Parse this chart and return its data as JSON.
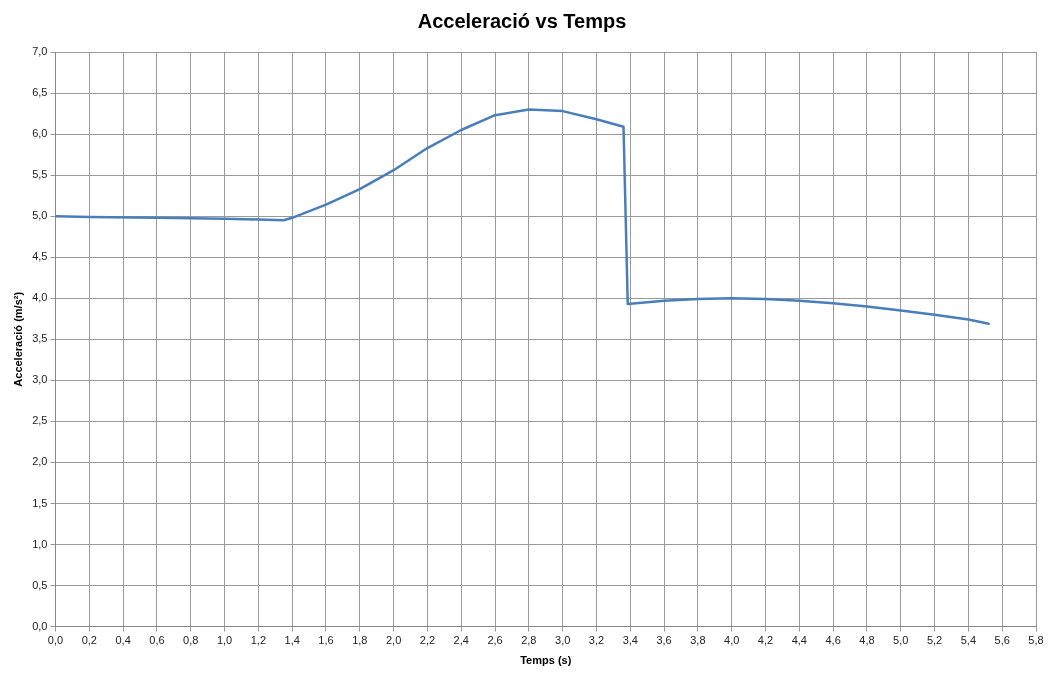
{
  "chart_data": {
    "type": "line",
    "title": "Acceleració vs Temps",
    "xlabel": "Temps (s)",
    "ylabel": "Acceleració (m/s²)",
    "x": [
      0,
      0.2,
      0.6,
      1.0,
      1.2,
      1.35,
      1.4,
      1.6,
      1.8,
      2.0,
      2.2,
      2.4,
      2.6,
      2.8,
      3.0,
      3.2,
      3.36,
      3.385,
      3.6,
      3.8,
      4.0,
      4.2,
      4.4,
      4.6,
      4.8,
      5.0,
      5.2,
      5.4,
      5.52
    ],
    "series": [
      {
        "color": "#4a7ebb",
        "values": [
          5.0,
          4.99,
          4.98,
          4.97,
          4.96,
          4.95,
          4.98,
          5.14,
          5.33,
          5.56,
          5.83,
          6.05,
          6.23,
          6.3,
          6.28,
          6.18,
          6.09,
          3.93,
          3.97,
          3.99,
          4.0,
          3.99,
          3.97,
          3.94,
          3.9,
          3.85,
          3.8,
          3.74,
          3.69
        ]
      }
    ],
    "xlim": [
      0,
      5.8
    ],
    "ylim": [
      0,
      7
    ],
    "xticks": [
      {
        "value": 0,
        "label": "0,0"
      },
      {
        "value": 0.2,
        "label": "0,2"
      },
      {
        "value": 0.4,
        "label": "0,4"
      },
      {
        "value": 0.6,
        "label": "0,6"
      },
      {
        "value": 0.8,
        "label": "0,8"
      },
      {
        "value": 1.0,
        "label": "1,0"
      },
      {
        "value": 1.2,
        "label": "1,2"
      },
      {
        "value": 1.4,
        "label": "1,4"
      },
      {
        "value": 1.6,
        "label": "1,6"
      },
      {
        "value": 1.8,
        "label": "1,8"
      },
      {
        "value": 2.0,
        "label": "2,0"
      },
      {
        "value": 2.2,
        "label": "2,2"
      },
      {
        "value": 2.4,
        "label": "2,4"
      },
      {
        "value": 2.6,
        "label": "2,6"
      },
      {
        "value": 2.8,
        "label": "2,8"
      },
      {
        "value": 3.0,
        "label": "3,0"
      },
      {
        "value": 3.2,
        "label": "3,2"
      },
      {
        "value": 3.4,
        "label": "3,4"
      },
      {
        "value": 3.6,
        "label": "3,6"
      },
      {
        "value": 3.8,
        "label": "3,8"
      },
      {
        "value": 4.0,
        "label": "4,0"
      },
      {
        "value": 4.2,
        "label": "4,2"
      },
      {
        "value": 4.4,
        "label": "4,4"
      },
      {
        "value": 4.6,
        "label": "4,6"
      },
      {
        "value": 4.8,
        "label": "4,8"
      },
      {
        "value": 5.0,
        "label": "5,0"
      },
      {
        "value": 5.2,
        "label": "5,2"
      },
      {
        "value": 5.4,
        "label": "5,4"
      },
      {
        "value": 5.6,
        "label": "5,6"
      },
      {
        "value": 5.8,
        "label": "5,8"
      }
    ],
    "yticks": [
      {
        "value": 0,
        "label": "0,0"
      },
      {
        "value": 0.5,
        "label": "0,5"
      },
      {
        "value": 1.0,
        "label": "1,0"
      },
      {
        "value": 1.5,
        "label": "1,5"
      },
      {
        "value": 2.0,
        "label": "2,0"
      },
      {
        "value": 2.5,
        "label": "2,5"
      },
      {
        "value": 3.0,
        "label": "3,0"
      },
      {
        "value": 3.5,
        "label": "3,5"
      },
      {
        "value": 4.0,
        "label": "4,0"
      },
      {
        "value": 4.5,
        "label": "4,5"
      },
      {
        "value": 5.0,
        "label": "5,0"
      },
      {
        "value": 5.5,
        "label": "5,5"
      },
      {
        "value": 6.0,
        "label": "6,0"
      },
      {
        "value": 6.5,
        "label": "6,5"
      },
      {
        "value": 7.0,
        "label": "7,0"
      }
    ],
    "grid": true,
    "marker": "none",
    "line_style": "solid",
    "legend": false
  }
}
